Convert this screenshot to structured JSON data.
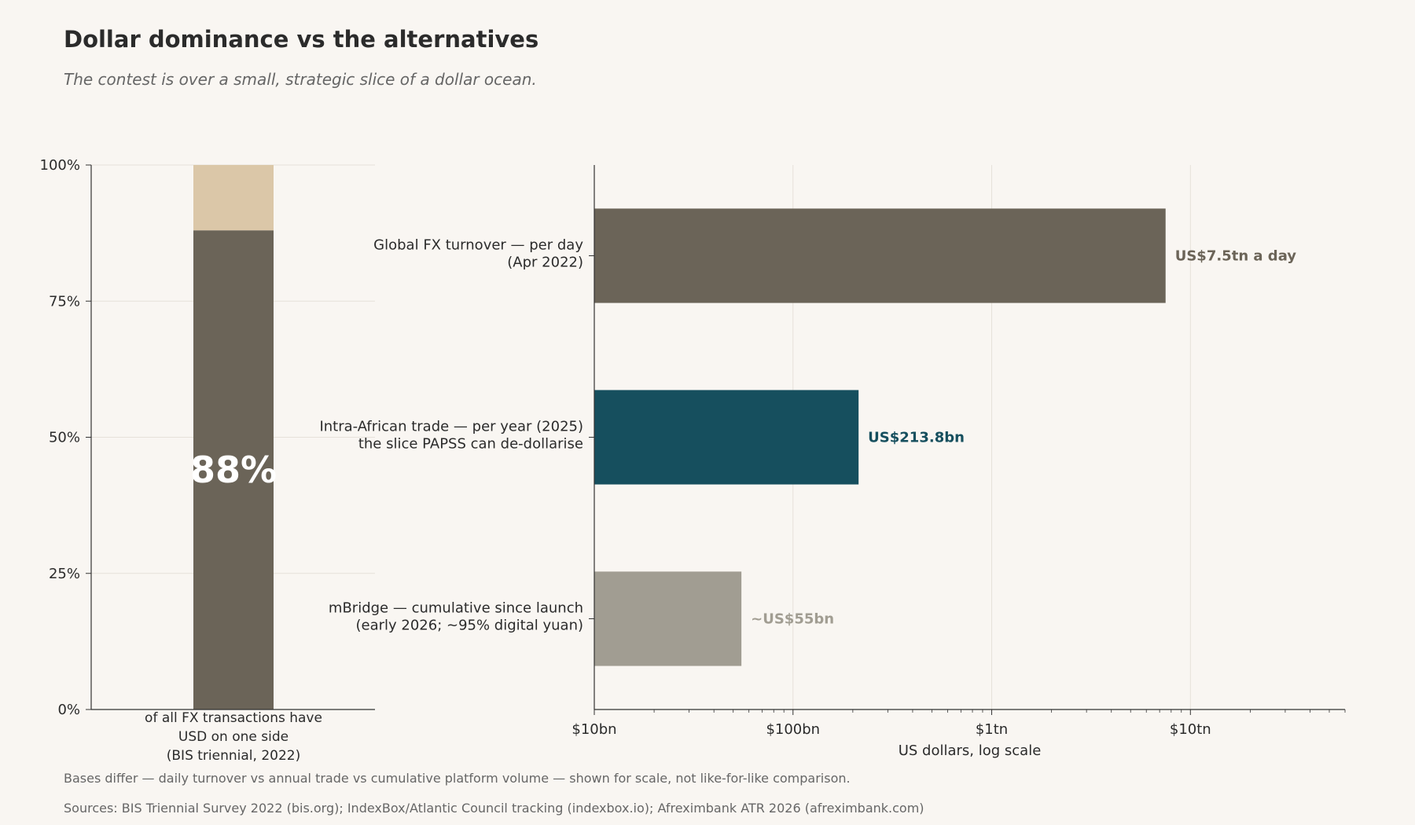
{
  "title": "Dollar dominance vs the alternatives",
  "subtitle": "The contest is over a small, strategic slice of a dollar ocean.",
  "footnote": "Bases differ — daily turnover vs annual trade vs cumulative platform volume — shown for scale, not like-for-like comparison.",
  "sources": "Sources: BIS Triennial Survey 2022 (bis.org); IndexBox/Atlantic Council tracking (indexbox.io); Afreximbank ATR 2026 (afreximbank.com)",
  "chart_data": [
    {
      "type": "bar",
      "stacked": true,
      "ylim": [
        0,
        100
      ],
      "yticks": [
        "0%",
        "25%",
        "50%",
        "75%",
        "100%"
      ],
      "grid": true,
      "series": [
        {
          "value": 88,
          "color": "#6b6458"
        },
        {
          "value": 12,
          "color": "#dbc7a8"
        }
      ],
      "big_label": "88%",
      "caption_lines": [
        "of all FX transactions have",
        "USD on one side",
        "(BIS triennial, 2022)"
      ]
    },
    {
      "type": "bar",
      "orientation": "horizontal",
      "scale": "log",
      "xlim_usd": [
        10000000000,
        60000000000000
      ],
      "xticks": [
        {
          "value": 10000000000,
          "label": "$10bn"
        },
        {
          "value": 100000000000,
          "label": "$100bn"
        },
        {
          "value": 1000000000000,
          "label": "$1tn"
        },
        {
          "value": 10000000000000,
          "label": "$10tn"
        }
      ],
      "xlabel": "US dollars, log scale",
      "grid": true,
      "bars": [
        {
          "label_lines": [
            "Global FX turnover — per day",
            "(Apr 2022)"
          ],
          "value": 7500000000000,
          "value_label": "US$7.5tn a day",
          "color": "#6b6458"
        },
        {
          "label_lines": [
            "Intra-African trade — per year (2025)",
            "the slice PAPSS can de-dollarise"
          ],
          "value": 213800000000,
          "value_label": "US$213.8bn",
          "color": "#164f5e"
        },
        {
          "label_lines": [
            "mBridge — cumulative since launch",
            "(early 2026; ~95% digital yuan)"
          ],
          "value": 55000000000,
          "value_label": "~US$55bn",
          "color": "#a19d92"
        }
      ]
    }
  ]
}
